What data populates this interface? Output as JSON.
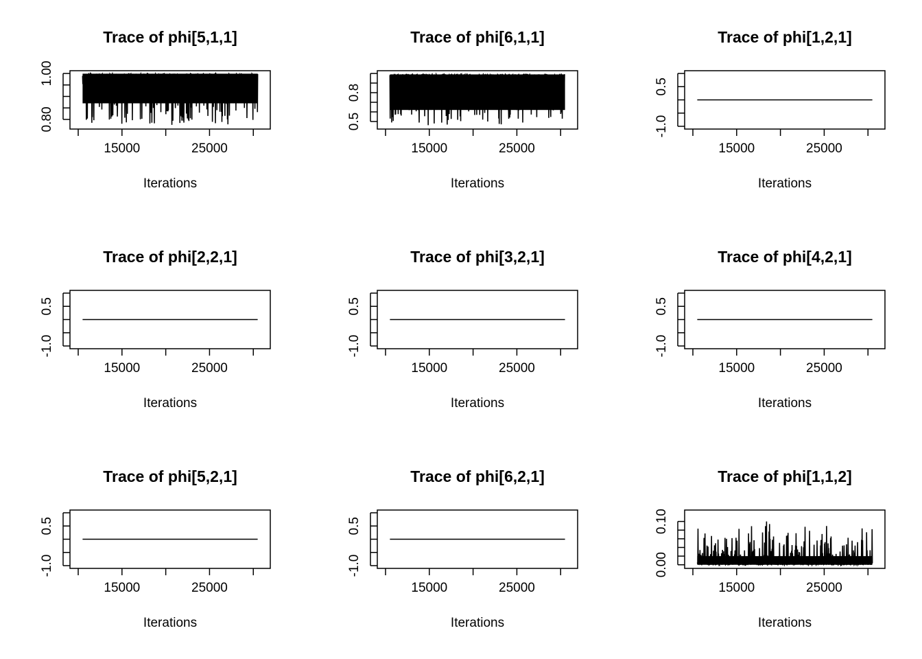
{
  "chart_data": [
    {
      "type": "line",
      "title": "Trace of phi[5,1,1]",
      "xlabel": "Iterations",
      "ylabel": "",
      "xlim": [
        10000,
        31000
      ],
      "ylim": [
        0.77,
        1.0
      ],
      "xticks": [
        10000,
        15000,
        20000,
        25000,
        30000
      ],
      "xtick_labels": [
        "",
        "15000",
        "",
        "25000",
        ""
      ],
      "yticks": [
        0.8,
        0.85,
        0.9,
        0.95,
        1.0
      ],
      "ytick_labels": [
        "0.80",
        "",
        "",
        "",
        "1.00"
      ],
      "trace": {
        "kind": "noisy",
        "start": 10500,
        "end": 30500,
        "base": 0.995,
        "spread": 0.15,
        "floor": 0.775,
        "cap": 0.999,
        "top_band": 0.87
      }
    },
    {
      "type": "line",
      "title": "Trace of phi[6,1,1]",
      "xlabel": "Iterations",
      "ylabel": "",
      "xlim": [
        10000,
        31000
      ],
      "ylim": [
        0.45,
        1.0
      ],
      "xticks": [
        10000,
        15000,
        20000,
        25000,
        30000
      ],
      "xtick_labels": [
        "",
        "15000",
        "",
        "25000",
        ""
      ],
      "yticks": [
        0.5,
        0.6,
        0.7,
        0.8,
        0.9,
        1.0
      ],
      "ytick_labels": [
        "0.5",
        "",
        "",
        "0.8",
        "",
        ""
      ],
      "trace": {
        "kind": "noisy",
        "start": 10500,
        "end": 30500,
        "base": 0.9,
        "spread": 0.4,
        "floor": 0.46,
        "cap": 0.99,
        "top_band": 0.62
      }
    },
    {
      "type": "line",
      "title": "Trace of phi[1,2,1]",
      "xlabel": "Iterations",
      "ylabel": "",
      "xlim": [
        10000,
        31000
      ],
      "ylim": [
        -1.0,
        1.0
      ],
      "xticks": [
        10000,
        15000,
        20000,
        25000,
        30000
      ],
      "xtick_labels": [
        "",
        "15000",
        "",
        "25000",
        ""
      ],
      "yticks": [
        -1.0,
        -0.5,
        0.0,
        0.5,
        1.0
      ],
      "ytick_labels": [
        "-1.0",
        "",
        "",
        "0.5",
        ""
      ],
      "trace": {
        "kind": "constant",
        "start": 10500,
        "end": 30500,
        "value": 0.0
      }
    },
    {
      "type": "line",
      "title": "Trace of phi[2,2,1]",
      "xlabel": "Iterations",
      "ylabel": "",
      "xlim": [
        10000,
        31000
      ],
      "ylim": [
        -1.0,
        1.0
      ],
      "xticks": [
        10000,
        15000,
        20000,
        25000,
        30000
      ],
      "xtick_labels": [
        "",
        "15000",
        "",
        "25000",
        ""
      ],
      "yticks": [
        -1.0,
        -0.5,
        0.0,
        0.5,
        1.0
      ],
      "ytick_labels": [
        "-1.0",
        "",
        "",
        "0.5",
        ""
      ],
      "trace": {
        "kind": "constant",
        "start": 10500,
        "end": 30500,
        "value": 0.0
      }
    },
    {
      "type": "line",
      "title": "Trace of phi[3,2,1]",
      "xlabel": "Iterations",
      "ylabel": "",
      "xlim": [
        10000,
        31000
      ],
      "ylim": [
        -1.0,
        1.0
      ],
      "xticks": [
        10000,
        15000,
        20000,
        25000,
        30000
      ],
      "xtick_labels": [
        "",
        "15000",
        "",
        "25000",
        ""
      ],
      "yticks": [
        -1.0,
        -0.5,
        0.0,
        0.5,
        1.0
      ],
      "ytick_labels": [
        "-1.0",
        "",
        "",
        "0.5",
        ""
      ],
      "trace": {
        "kind": "constant",
        "start": 10500,
        "end": 30500,
        "value": 0.0
      }
    },
    {
      "type": "line",
      "title": "Trace of phi[4,2,1]",
      "xlabel": "Iterations",
      "ylabel": "",
      "xlim": [
        10000,
        31000
      ],
      "ylim": [
        -1.0,
        1.0
      ],
      "xticks": [
        10000,
        15000,
        20000,
        25000,
        30000
      ],
      "xtick_labels": [
        "",
        "15000",
        "",
        "25000",
        ""
      ],
      "yticks": [
        -1.0,
        -0.5,
        0.0,
        0.5,
        1.0
      ],
      "ytick_labels": [
        "-1.0",
        "",
        "",
        "0.5",
        ""
      ],
      "trace": {
        "kind": "constant",
        "start": 10500,
        "end": 30500,
        "value": 0.0
      }
    },
    {
      "type": "line",
      "title": "Trace of phi[5,2,1]",
      "xlabel": "Iterations",
      "ylabel": "",
      "xlim": [
        10000,
        31000
      ],
      "ylim": [
        -1.0,
        1.0
      ],
      "xticks": [
        10000,
        15000,
        20000,
        25000,
        30000
      ],
      "xtick_labels": [
        "",
        "15000",
        "",
        "25000",
        ""
      ],
      "yticks": [
        -1.0,
        -0.5,
        0.0,
        0.5,
        1.0
      ],
      "ytick_labels": [
        "-1.0",
        "",
        "",
        "0.5",
        ""
      ],
      "trace": {
        "kind": "constant",
        "start": 10500,
        "end": 30500,
        "value": 0.0
      }
    },
    {
      "type": "line",
      "title": "Trace of phi[6,2,1]",
      "xlabel": "Iterations",
      "ylabel": "",
      "xlim": [
        10000,
        31000
      ],
      "ylim": [
        -1.0,
        1.0
      ],
      "xticks": [
        10000,
        15000,
        20000,
        25000,
        30000
      ],
      "xtick_labels": [
        "",
        "15000",
        "",
        "25000",
        ""
      ],
      "yticks": [
        -1.0,
        -0.5,
        0.0,
        0.5,
        1.0
      ],
      "ytick_labels": [
        "-1.0",
        "",
        "",
        "0.5",
        ""
      ],
      "trace": {
        "kind": "constant",
        "start": 10500,
        "end": 30500,
        "value": 0.0
      }
    },
    {
      "type": "line",
      "title": "Trace of phi[1,1,2]",
      "xlabel": "Iterations",
      "ylabel": "",
      "xlim": [
        10000,
        31000
      ],
      "ylim": [
        -0.002,
        0.12
      ],
      "xticks": [
        10000,
        15000,
        20000,
        25000,
        30000
      ],
      "xtick_labels": [
        "",
        "15000",
        "",
        "25000",
        ""
      ],
      "yticks": [
        0.0,
        0.02,
        0.04,
        0.06,
        0.08,
        0.1
      ],
      "ytick_labels": [
        "0.00",
        "",
        "",
        "",
        "",
        "0.10"
      ],
      "trace": {
        "kind": "noisy_low",
        "start": 10500,
        "end": 30500,
        "base": 0.0,
        "spread": 0.05,
        "floor": 0.0,
        "cap": 0.108,
        "top_band": 0.02
      }
    }
  ]
}
